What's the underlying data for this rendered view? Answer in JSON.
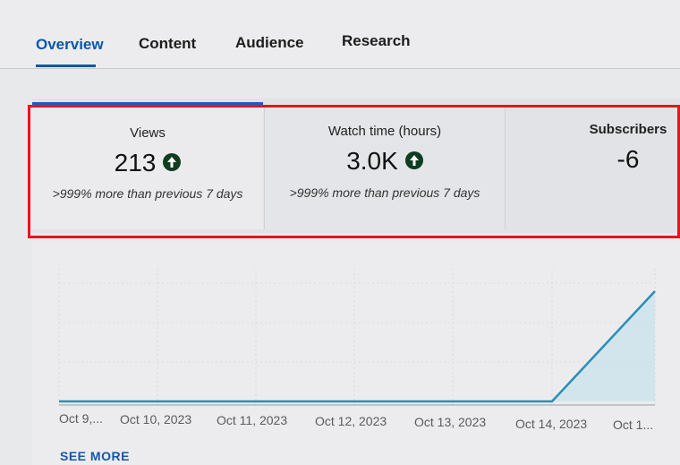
{
  "tabs": [
    {
      "label": "Overview",
      "active": true
    },
    {
      "label": "Content",
      "active": false
    },
    {
      "label": "Audience",
      "active": false
    },
    {
      "label": "Research",
      "active": false
    }
  ],
  "metrics": [
    {
      "label": "Views",
      "value": "213",
      "trend": "up",
      "compare": ">999% more than previous 7 days"
    },
    {
      "label": "Watch time (hours)",
      "value": "3.0K",
      "trend": "up",
      "compare": ">999% more than previous 7 days"
    },
    {
      "label": "Subscribers",
      "value": "-6",
      "trend": "",
      "compare": ""
    }
  ],
  "colors": {
    "accent": "#0b57a8",
    "highlight_border": "#e3161e",
    "trend_up": "#0f3d1f",
    "line": "#2a8fb8",
    "area_fill": "#c7e3ec"
  },
  "icons": {
    "trend_up": "arrow-up-circle-icon"
  },
  "chart_data": {
    "type": "line",
    "x_tick_labels": [
      "Oct 9,...",
      "Oct 10, 2023",
      "Oct 11, 2023",
      "Oct 12, 2023",
      "Oct 13, 2023",
      "Oct 14, 2023",
      "Oct 1..."
    ],
    "x": [
      "Oct 9",
      "Oct 10",
      "Oct 11",
      "Oct 12",
      "Oct 13",
      "Oct 14",
      "Oct 15"
    ],
    "values": [
      0,
      0,
      0,
      0,
      0,
      0,
      213
    ],
    "grid": true
  },
  "see_more_label": "SEE MORE"
}
